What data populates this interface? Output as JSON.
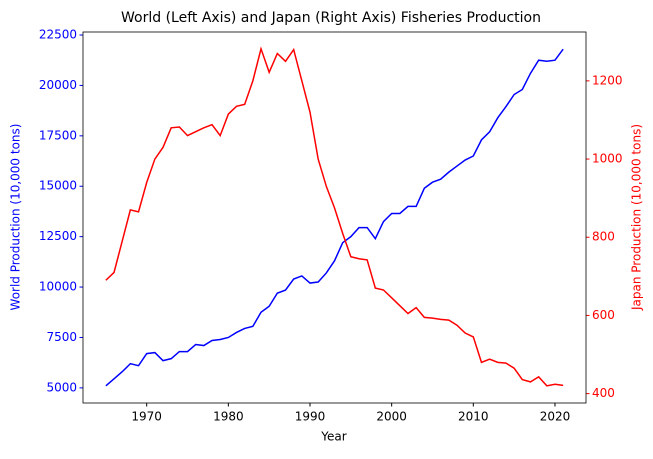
{
  "chart_data": {
    "type": "line",
    "title": "World (Left Axis) and Japan (Right Axis) Fisheries Production",
    "xlabel": "Year",
    "ylabel": "World Production (10,000 tons)",
    "y2label": "Japan Production (10,000 tons)",
    "x": [
      1965,
      1966,
      1967,
      1968,
      1969,
      1970,
      1971,
      1972,
      1973,
      1974,
      1975,
      1976,
      1977,
      1978,
      1979,
      1980,
      1981,
      1982,
      1983,
      1984,
      1985,
      1986,
      1987,
      1988,
      1989,
      1990,
      1991,
      1992,
      1993,
      1994,
      1995,
      1996,
      1997,
      1998,
      1999,
      2000,
      2001,
      2002,
      2003,
      2004,
      2005,
      2006,
      2007,
      2008,
      2009,
      2010,
      2011,
      2012,
      2013,
      2014,
      2015,
      2016,
      2017,
      2018,
      2019,
      2020,
      2021
    ],
    "series": [
      {
        "color": "#0000ff",
        "values": [
          5100,
          5450,
          5800,
          6200,
          6100,
          6700,
          6750,
          6350,
          6450,
          6800,
          6800,
          7150,
          7100,
          7350,
          7400,
          7500,
          7750,
          7950,
          8050,
          8750,
          9050,
          9700,
          9850,
          10400,
          10550,
          10200,
          10250,
          10700,
          11300,
          12200,
          12500,
          12950,
          12950,
          12400,
          13250,
          13650,
          13650,
          14000,
          14000,
          14900,
          15200,
          15350,
          15700,
          16000,
          16300,
          16500,
          17300,
          17700,
          18400,
          18950,
          19550,
          19800,
          20600,
          21250,
          21200,
          21250,
          21800
        ]
      },
      {
        "color": "#ff0000",
        "axis": "y2",
        "values": [
          690,
          710,
          790,
          870,
          865,
          940,
          1000,
          1030,
          1080,
          1082,
          1060,
          1070,
          1080,
          1088,
          1060,
          1115,
          1135,
          1140,
          1200,
          1282,
          1222,
          1270,
          1250,
          1280,
          1200,
          1120,
          1000,
          930,
          875,
          810,
          750,
          745,
          742,
          670,
          665,
          645,
          625,
          605,
          620,
          595,
          593,
          590,
          588,
          575,
          555,
          545,
          480,
          488,
          480,
          478,
          465,
          436,
          430,
          443,
          420,
          424,
          421
        ]
      }
    ],
    "xlim": [
      1962.2,
      2023.8
    ],
    "xticks": [
      1970,
      1980,
      1990,
      2000,
      2010,
      2020
    ],
    "ylim": [
      4250,
      22650
    ],
    "yticks": [
      5000,
      7500,
      10000,
      12500,
      15000,
      17500,
      20000,
      22500
    ],
    "y2lim": [
      376,
      1325
    ],
    "y2ticks": [
      400,
      600,
      800,
      1000,
      1200
    ]
  }
}
